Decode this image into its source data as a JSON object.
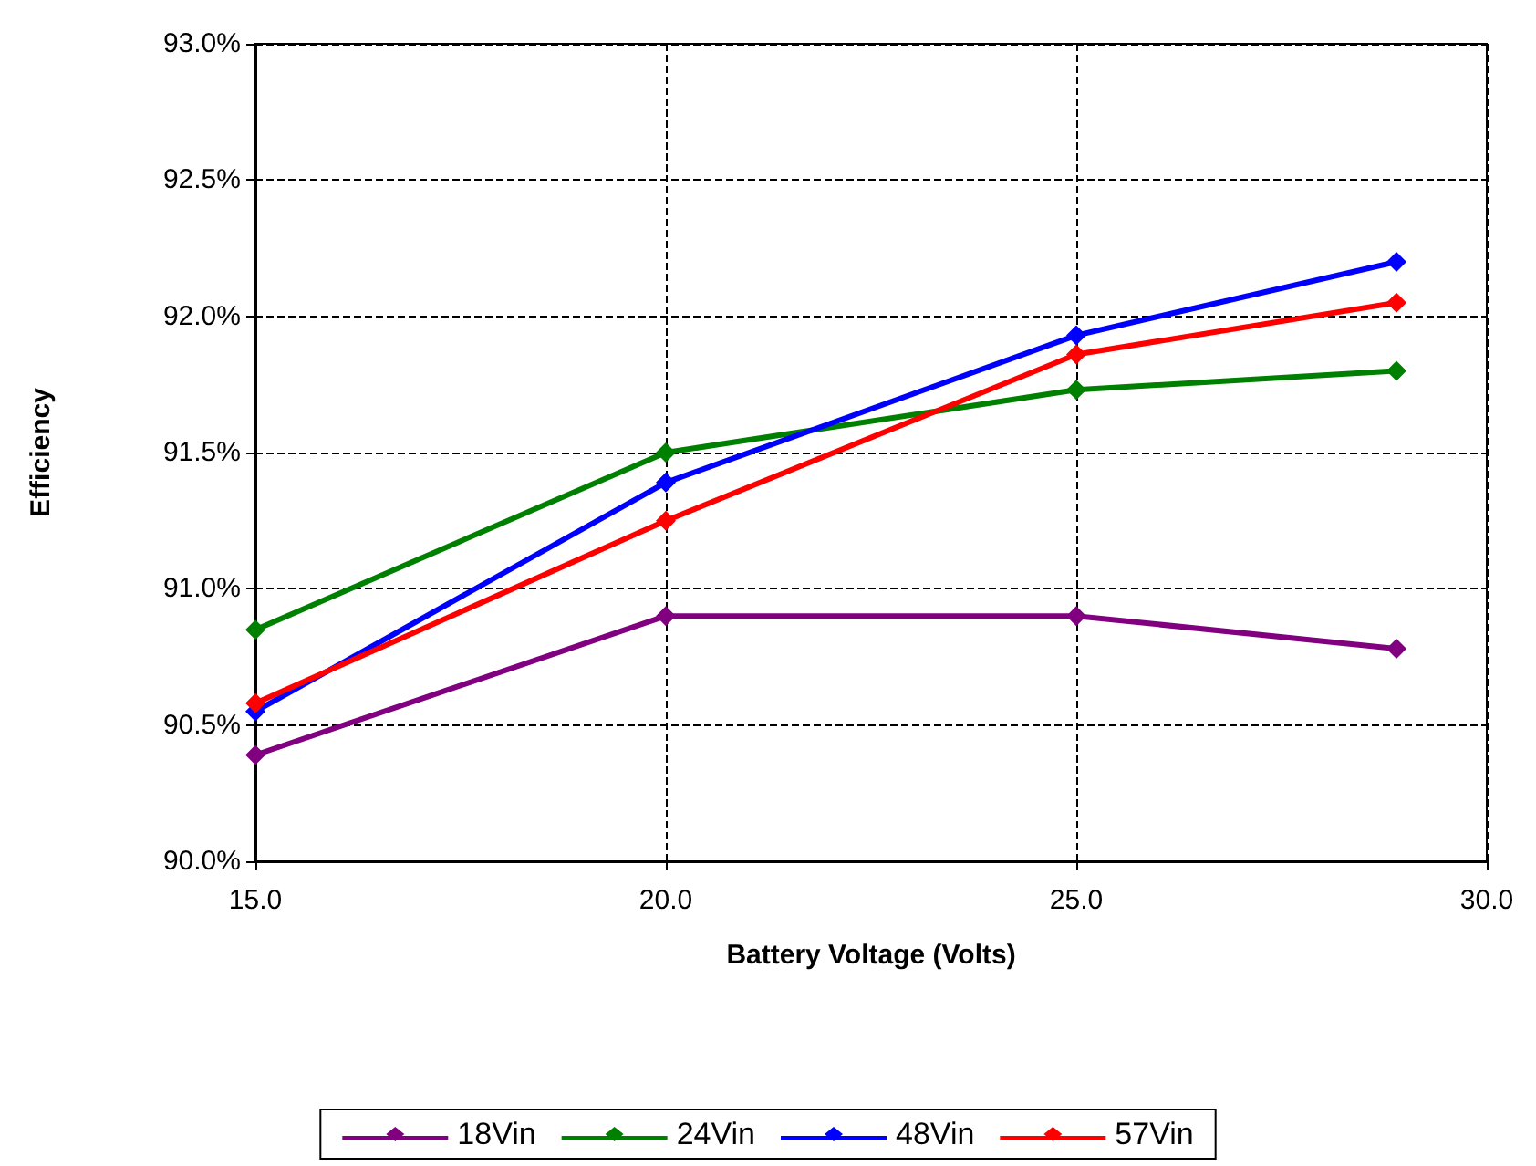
{
  "chart_data": {
    "type": "line",
    "xlabel": "Battery Voltage (Volts)",
    "ylabel": "Efficiency",
    "x": [
      15,
      20,
      25,
      28.9
    ],
    "series": [
      {
        "name": "18Vin",
        "color": "#800080",
        "values": [
          90.39,
          90.9,
          90.9,
          90.78
        ]
      },
      {
        "name": "24Vin",
        "color": "#008000",
        "values": [
          90.85,
          91.5,
          91.73,
          91.8
        ]
      },
      {
        "name": "48Vin",
        "color": "#0000ff",
        "values": [
          90.55,
          91.39,
          91.93,
          92.2
        ]
      },
      {
        "name": "57Vin",
        "color": "#ff0000",
        "values": [
          90.58,
          91.25,
          91.86,
          92.05
        ]
      }
    ],
    "xlim": [
      15,
      30
    ],
    "xticks": [
      {
        "value": 15,
        "label": "15.0"
      },
      {
        "value": 20,
        "label": "20.0"
      },
      {
        "value": 25,
        "label": "25.0"
      },
      {
        "value": 30,
        "label": "30.0"
      }
    ],
    "ylim": [
      90,
      93
    ],
    "yticks": [
      {
        "value": 90,
        "label": "90.0%"
      },
      {
        "value": 90.5,
        "label": "90.5%"
      },
      {
        "value": 91,
        "label": "91.0%"
      },
      {
        "value": 91.5,
        "label": "91.5%"
      },
      {
        "value": 92,
        "label": "92.0%"
      },
      {
        "value": 92.5,
        "label": "92.5%"
      },
      {
        "value": 93,
        "label": "93.0%"
      }
    ],
    "grid": true,
    "legend": "bottom",
    "marker": "diamond",
    "line_style": "solid"
  }
}
